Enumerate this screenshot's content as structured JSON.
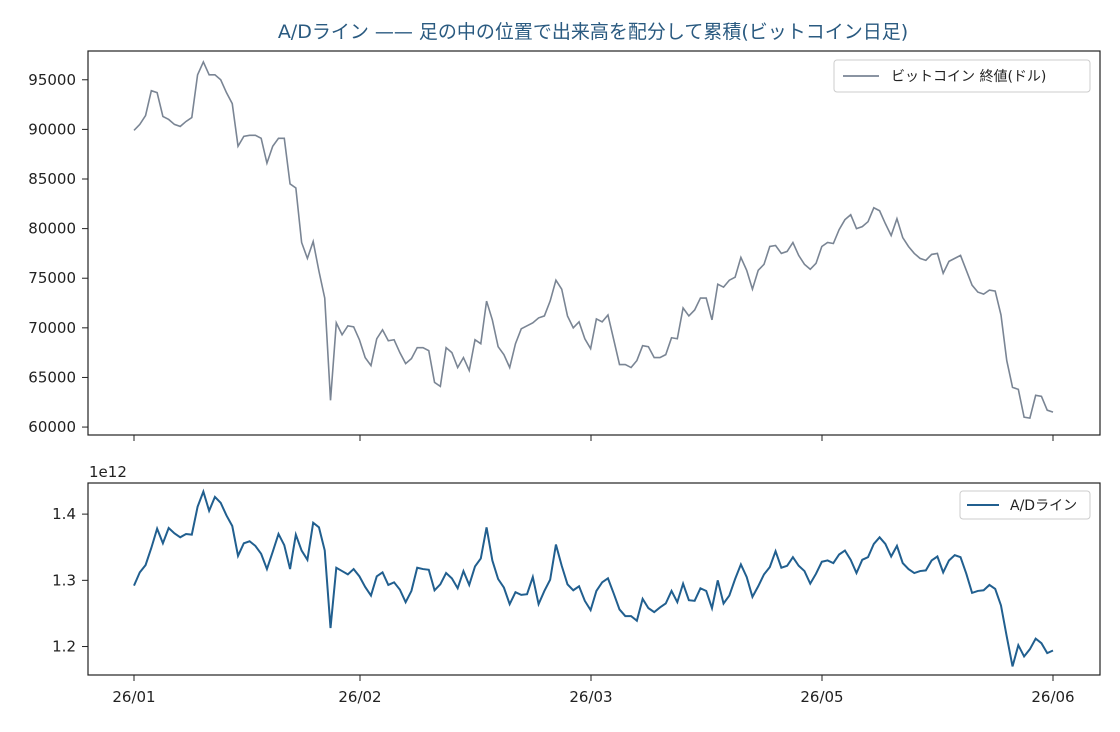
{
  "chart_data": [
    {
      "type": "line",
      "title": "A/Dライン —— 足の中の位置で出来高を配分して累積(ビットコイン日足)",
      "xlabel": "",
      "ylabel": "",
      "ylim": [
        59200,
        97900
      ],
      "yticks": [
        60000,
        65000,
        70000,
        75000,
        80000,
        85000,
        90000,
        95000
      ],
      "xticks": [
        "26/01",
        "26/02",
        "26/03",
        "26/05",
        "26/06"
      ],
      "grid": false,
      "legend": "top-right",
      "series": [
        {
          "name": "ビットコイン 終値(ドル)",
          "color": "#7a8594",
          "values": [
            89900,
            90500,
            91400,
            93900,
            93700,
            91300,
            91000,
            90500,
            90300,
            90800,
            91200,
            95500,
            96800,
            95500,
            95500,
            95000,
            93700,
            92600,
            88300,
            89300,
            89400,
            89400,
            89100,
            86600,
            88300,
            89100,
            89100,
            84500,
            84100,
            78600,
            77000,
            78700,
            75700,
            73000,
            62700,
            70500,
            69300,
            70200,
            70100,
            68800,
            67000,
            66200,
            68900,
            69800,
            68700,
            68800,
            67500,
            66400,
            66900,
            68000,
            68000,
            67700,
            64500,
            64100,
            68000,
            67500,
            66000,
            67000,
            65700,
            68800,
            68400,
            72700,
            70800,
            68100,
            67300,
            66000,
            68400,
            69900,
            70200,
            70500,
            71000,
            71200,
            72700,
            74800,
            73900,
            71200,
            70000,
            70600,
            68900,
            67900,
            70900,
            70600,
            71300,
            68800,
            66300,
            66300,
            66000,
            66700,
            68200,
            68100,
            67000,
            67000,
            67300,
            69000,
            68900,
            72000,
            71200,
            71800,
            73000,
            73000,
            70800,
            74400,
            74100,
            74800,
            75100,
            77100,
            75800,
            73900,
            75800,
            76400,
            78200,
            78300,
            77500,
            77700,
            78600,
            77300,
            76400,
            75900,
            76500,
            78200,
            78600,
            78500,
            79900,
            80900,
            81400,
            80000,
            80200,
            80700,
            82100,
            81800,
            80500,
            79300,
            81000,
            79100,
            78200,
            77500,
            77000,
            76800,
            77400,
            77500,
            75500,
            76700,
            77000,
            77300,
            75800,
            74300,
            73600,
            73400,
            73800,
            73700,
            71300,
            66700,
            64000,
            63800,
            61000,
            60900,
            63200,
            63100,
            61700,
            61500
          ]
        },
        {
          "name": "A/Dライン",
          "color": "#215f8f",
          "values": [
            1.292,
            1.312,
            1.323,
            1.349,
            1.378,
            1.356,
            1.379,
            1.371,
            1.365,
            1.37,
            1.369,
            1.411,
            1.434,
            1.405,
            1.426,
            1.417,
            1.398,
            1.382,
            1.337,
            1.356,
            1.359,
            1.352,
            1.34,
            1.317,
            1.343,
            1.37,
            1.353,
            1.317,
            1.369,
            1.345,
            1.331,
            1.387,
            1.38,
            1.345,
            1.228,
            1.319,
            1.314,
            1.309,
            1.317,
            1.306,
            1.29,
            1.277,
            1.306,
            1.312,
            1.293,
            1.297,
            1.286,
            1.267,
            1.284,
            1.319,
            1.317,
            1.316,
            1.285,
            1.294,
            1.311,
            1.303,
            1.288,
            1.314,
            1.293,
            1.321,
            1.333,
            1.38,
            1.33,
            1.302,
            1.289,
            1.264,
            1.282,
            1.278,
            1.279,
            1.305,
            1.264,
            1.284,
            1.301,
            1.354,
            1.322,
            1.294,
            1.285,
            1.291,
            1.269,
            1.255,
            1.284,
            1.297,
            1.303,
            1.28,
            1.256,
            1.246,
            1.246,
            1.239,
            1.272,
            1.258,
            1.252,
            1.259,
            1.265,
            1.284,
            1.267,
            1.295,
            1.27,
            1.269,
            1.288,
            1.284,
            1.258,
            1.3,
            1.265,
            1.277,
            1.302,
            1.324,
            1.305,
            1.275,
            1.291,
            1.309,
            1.32,
            1.344,
            1.319,
            1.322,
            1.335,
            1.322,
            1.314,
            1.295,
            1.31,
            1.328,
            1.33,
            1.326,
            1.339,
            1.345,
            1.331,
            1.311,
            1.331,
            1.335,
            1.355,
            1.365,
            1.355,
            1.336,
            1.352,
            1.326,
            1.317,
            1.311,
            1.314,
            1.315,
            1.33,
            1.336,
            1.312,
            1.33,
            1.338,
            1.335,
            1.31,
            1.281,
            1.284,
            1.285,
            1.293,
            1.287,
            1.262,
            1.215,
            1.17,
            1.202,
            1.185,
            1.196,
            1.212,
            1.205,
            1.19,
            1.194
          ]
        }
      ]
    },
    {
      "type": "line",
      "title": "",
      "xlabel": "",
      "ylabel": "",
      "exponent_label": "1e12",
      "ylim": [
        1.157,
        1.447
      ],
      "yticks": [
        1.2,
        1.3,
        1.4
      ],
      "xticks": [
        "26/01",
        "26/02",
        "26/03",
        "26/05",
        "26/06"
      ],
      "grid": false,
      "legend": "top-right",
      "series_ref": 1
    }
  ]
}
